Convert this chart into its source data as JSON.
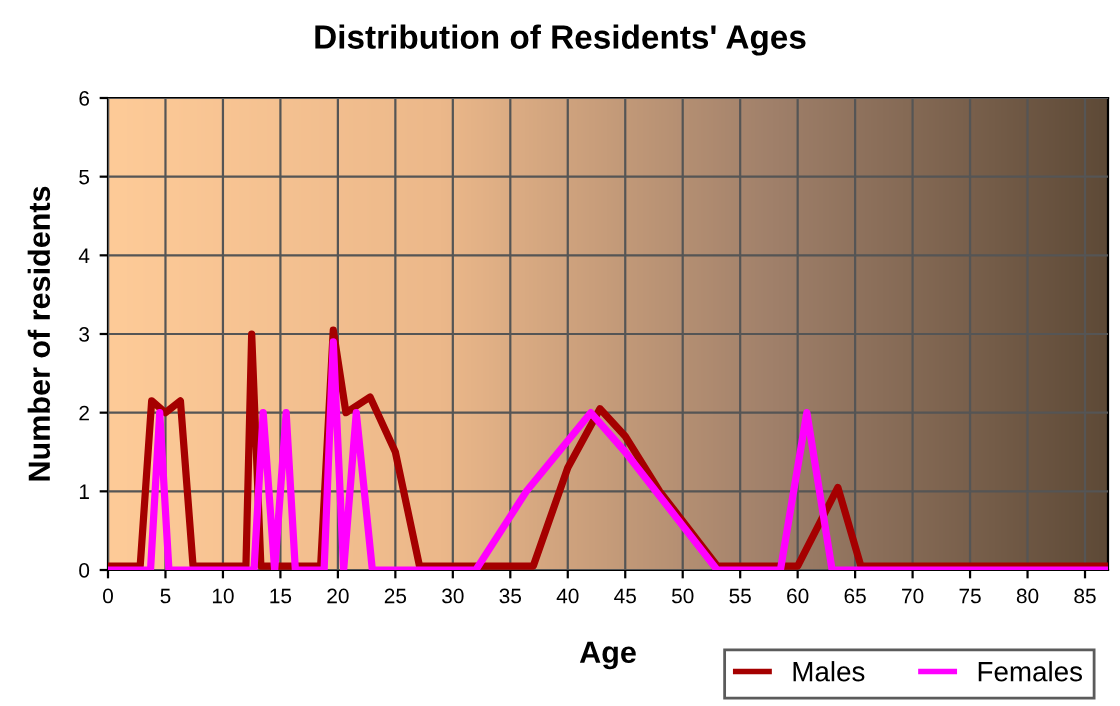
{
  "chart_data": {
    "type": "line",
    "title": "Distribution of Residents' Ages",
    "xlabel": "Age",
    "ylabel": "Number of residents",
    "xlim": [
      0,
      87
    ],
    "xticks": [
      0,
      5,
      10,
      15,
      20,
      25,
      30,
      35,
      40,
      45,
      50,
      55,
      60,
      65,
      70,
      75,
      80,
      85
    ],
    "ylim": [
      0,
      6
    ],
    "yticks": [
      0,
      1,
      2,
      3,
      4,
      5,
      6
    ],
    "grid": true,
    "legend": "bottom right",
    "line_style": "solid",
    "marker": "none",
    "series": [
      {
        "name": "Males",
        "color": "#a50000",
        "x": [
          0,
          2.8,
          3.8,
          5,
          6.3,
          7.4,
          12,
          12.5,
          13.3,
          18.5,
          19.6,
          20.7,
          22.8,
          25,
          27.1,
          37,
          40,
          42.8,
          45,
          48,
          53,
          60,
          63.5,
          65.5,
          70,
          87
        ],
        "values": [
          0.05,
          0.05,
          2.15,
          2.0,
          2.15,
          0.05,
          0.05,
          3.0,
          0.05,
          0.05,
          3.05,
          2.0,
          2.2,
          1.5,
          0.05,
          0.05,
          1.3,
          2.05,
          1.7,
          1.0,
          0.05,
          0.05,
          1.05,
          0.05,
          0.05,
          0.05
        ]
      },
      {
        "name": "Females",
        "color": "#ff00ff",
        "x": [
          0,
          3.7,
          4.5,
          5.3,
          12.7,
          13.5,
          14.5,
          15.5,
          16.3,
          18.8,
          19.6,
          20.5,
          21.6,
          23,
          32,
          36.4,
          42,
          45,
          53,
          58.5,
          60.8,
          63,
          87
        ],
        "values": [
          0,
          0,
          2.0,
          0,
          0,
          2.0,
          0,
          2.0,
          0,
          0,
          2.9,
          0,
          2.0,
          0,
          0,
          1.0,
          2.0,
          1.5,
          0,
          0,
          2.0,
          0,
          0
        ]
      }
    ]
  }
}
